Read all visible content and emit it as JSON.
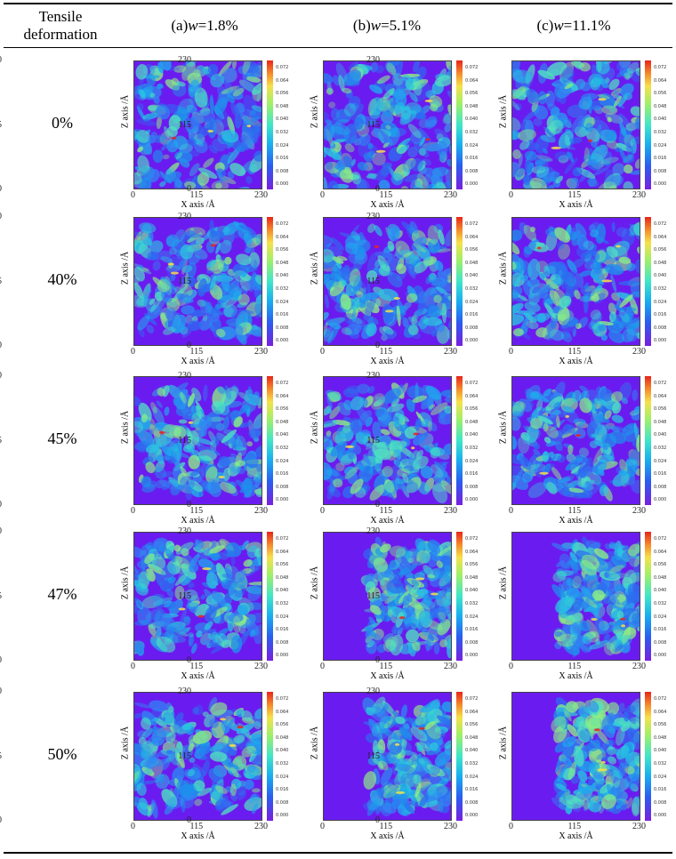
{
  "header": {
    "row_label_line1": "Tensile",
    "row_label_line2": "deformation",
    "columns": [
      {
        "prefix": "(a) ",
        "var": "w",
        "value": "=1.8%"
      },
      {
        "prefix": "(b) ",
        "var": "w",
        "value": "=5.1%"
      },
      {
        "prefix": "(c) ",
        "var": "w",
        "value": "=11.1%"
      }
    ]
  },
  "rows": [
    "0%",
    "40%",
    "45%",
    "47%",
    "50%"
  ],
  "axes": {
    "xlabel": "X axis /Å",
    "ylabel": "Z axis /Å",
    "ticks": [
      "0",
      "115",
      "230"
    ]
  },
  "colorbar_ticks": [
    "0.072",
    "0.064",
    "0.056",
    "0.048",
    "0.040",
    "0.032",
    "0.024",
    "0.016",
    "0.008",
    "0.000"
  ],
  "colors": {
    "background_low": "#6a1cf0",
    "mid": "#27a9e6",
    "high": "#e8261a"
  }
}
